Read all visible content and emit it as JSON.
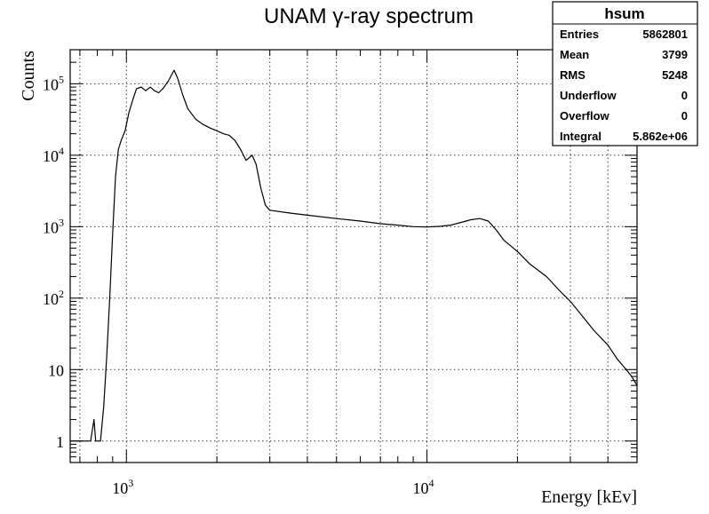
{
  "chart_data": {
    "type": "line",
    "title": "UNAM γ-ray spectrum",
    "xlabel": "Energy [kEv]",
    "ylabel": "Counts",
    "xscale": "log",
    "yscale": "log",
    "xlim": [
      650,
      50000
    ],
    "ylim": [
      0.5,
      300000
    ],
    "grid": true,
    "x_ticks": [
      {
        "value": 1000,
        "base": "10",
        "exp": "3"
      },
      {
        "value": 10000,
        "base": "10",
        "exp": "4"
      }
    ],
    "y_ticks": [
      {
        "value": 1,
        "base": "1",
        "exp": ""
      },
      {
        "value": 10,
        "base": "10",
        "exp": ""
      },
      {
        "value": 100,
        "base": "10",
        "exp": "2"
      },
      {
        "value": 1000,
        "base": "10",
        "exp": "3"
      },
      {
        "value": 10000,
        "base": "10",
        "exp": "4"
      },
      {
        "value": 100000,
        "base": "10",
        "exp": "5"
      }
    ],
    "series": [
      {
        "points": [
          [
            650,
            1
          ],
          [
            700,
            1
          ],
          [
            760,
            1
          ],
          [
            780,
            2
          ],
          [
            790,
            1
          ],
          [
            820,
            1
          ],
          [
            840,
            3
          ],
          [
            860,
            15
          ],
          [
            880,
            100
          ],
          [
            900,
            800
          ],
          [
            920,
            5000
          ],
          [
            940,
            12000
          ],
          [
            960,
            16000
          ],
          [
            990,
            22000
          ],
          [
            1020,
            40000
          ],
          [
            1050,
            60000
          ],
          [
            1080,
            85000
          ],
          [
            1120,
            90000
          ],
          [
            1160,
            80000
          ],
          [
            1200,
            90000
          ],
          [
            1240,
            80000
          ],
          [
            1280,
            75000
          ],
          [
            1320,
            85000
          ],
          [
            1380,
            110000
          ],
          [
            1440,
            155000
          ],
          [
            1480,
            120000
          ],
          [
            1540,
            70000
          ],
          [
            1600,
            45000
          ],
          [
            1700,
            32000
          ],
          [
            1800,
            27000
          ],
          [
            1900,
            24000
          ],
          [
            2000,
            22000
          ],
          [
            2100,
            20000
          ],
          [
            2200,
            19000
          ],
          [
            2300,
            16000
          ],
          [
            2400,
            12000
          ],
          [
            2500,
            8500
          ],
          [
            2620,
            10000
          ],
          [
            2700,
            7500
          ],
          [
            2800,
            3500
          ],
          [
            2900,
            2000
          ],
          [
            3000,
            1700
          ],
          [
            3500,
            1550
          ],
          [
            4000,
            1450
          ],
          [
            5000,
            1300
          ],
          [
            6000,
            1200
          ],
          [
            7000,
            1100
          ],
          [
            8000,
            1050
          ],
          [
            9000,
            1000
          ],
          [
            10000,
            990
          ],
          [
            11000,
            1010
          ],
          [
            12000,
            1050
          ],
          [
            13000,
            1150
          ],
          [
            14000,
            1250
          ],
          [
            15000,
            1300
          ],
          [
            16000,
            1200
          ],
          [
            17000,
            900
          ],
          [
            18000,
            650
          ],
          [
            20000,
            450
          ],
          [
            22000,
            300
          ],
          [
            25000,
            200
          ],
          [
            28000,
            120
          ],
          [
            30000,
            90
          ],
          [
            33000,
            55
          ],
          [
            36000,
            35
          ],
          [
            40000,
            22
          ],
          [
            43000,
            14
          ],
          [
            46000,
            10
          ],
          [
            48000,
            8
          ],
          [
            50000,
            6
          ]
        ]
      }
    ]
  },
  "stats": {
    "name": "hsum",
    "rows": [
      {
        "label": "Entries",
        "value": "5862801"
      },
      {
        "label": "Mean",
        "value": "3799"
      },
      {
        "label": "RMS",
        "value": "5248"
      },
      {
        "label": "Underflow",
        "value": "0"
      },
      {
        "label": "Overflow",
        "value": "0"
      },
      {
        "label": "Integral",
        "value": "5.862e+06"
      }
    ]
  }
}
